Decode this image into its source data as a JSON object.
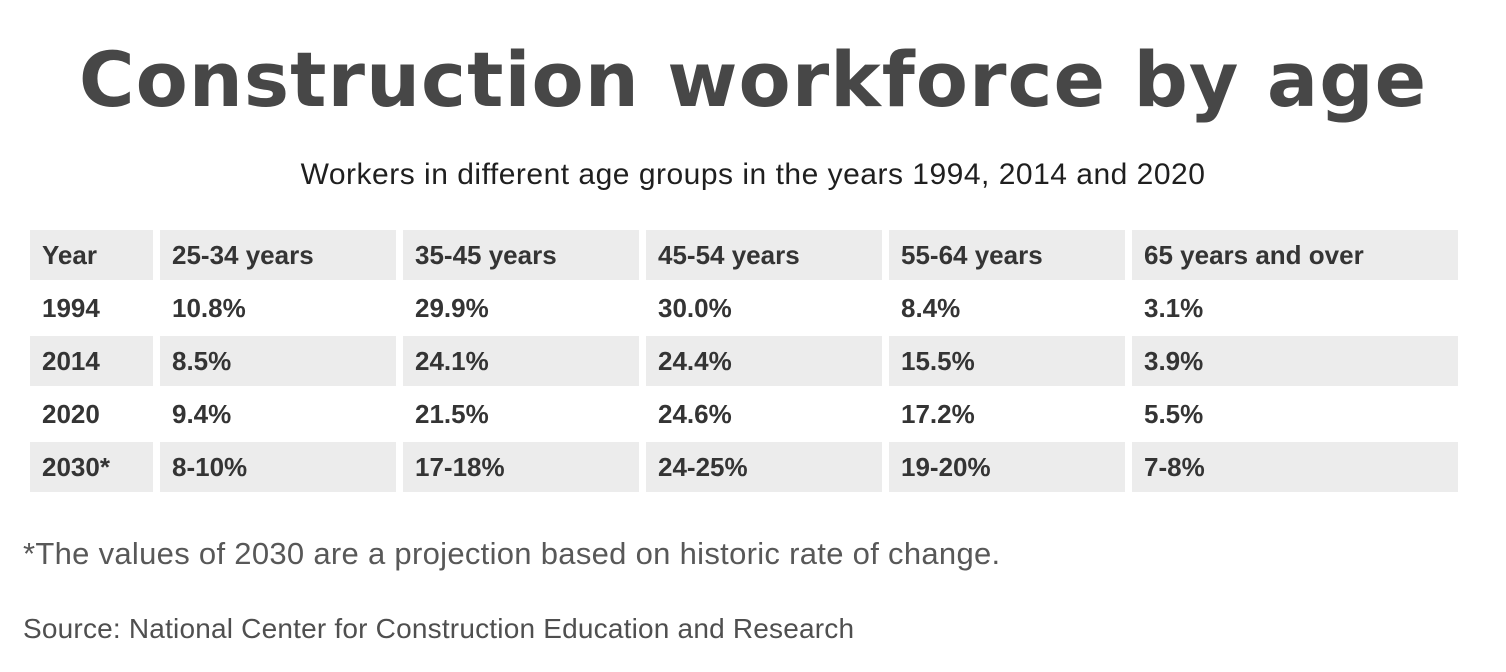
{
  "colors": {
    "background": "#ffffff",
    "title_text": "#474747",
    "subtitle_text": "#1f1f1f",
    "table_text": "#343434",
    "row_shade": "#ececec",
    "footnote_text": "#585858",
    "source_text": "#4f4f4f"
  },
  "chart_data": {
    "type": "table",
    "title": "Construction workforce by age",
    "subtitle": "Workers in different age groups in the years 1994, 2014 and 2020",
    "columns": [
      "Year",
      "25-34 years",
      "35-45 years",
      "45-54 years",
      "55-64 years",
      "65 years and over"
    ],
    "rows": [
      [
        "1994",
        "10.8%",
        "29.9%",
        "30.0%",
        "8.4%",
        "3.1%"
      ],
      [
        "2014",
        "8.5%",
        "24.1%",
        "24.4%",
        "15.5%",
        "3.9%"
      ],
      [
        "2020",
        "9.4%",
        "21.5%",
        "24.6%",
        "17.2%",
        "5.5%"
      ],
      [
        "2030*",
        "8-10%",
        "17-18%",
        "24-25%",
        "19-20%",
        "7-8%"
      ]
    ],
    "footnote": "*The values of 2030 are a projection based on historic rate of change.",
    "source": "Source: National Center for Construction Education and Research",
    "layout": {
      "shaded_bands": [
        "header",
        "2014",
        "2030*"
      ],
      "unshaded_bands": [
        "1994",
        "2020"
      ],
      "grid": "column and row gaps show white background between shaded cells",
      "legend": "none",
      "alignment": "left-aligned cells, centered title and subtitle"
    }
  }
}
